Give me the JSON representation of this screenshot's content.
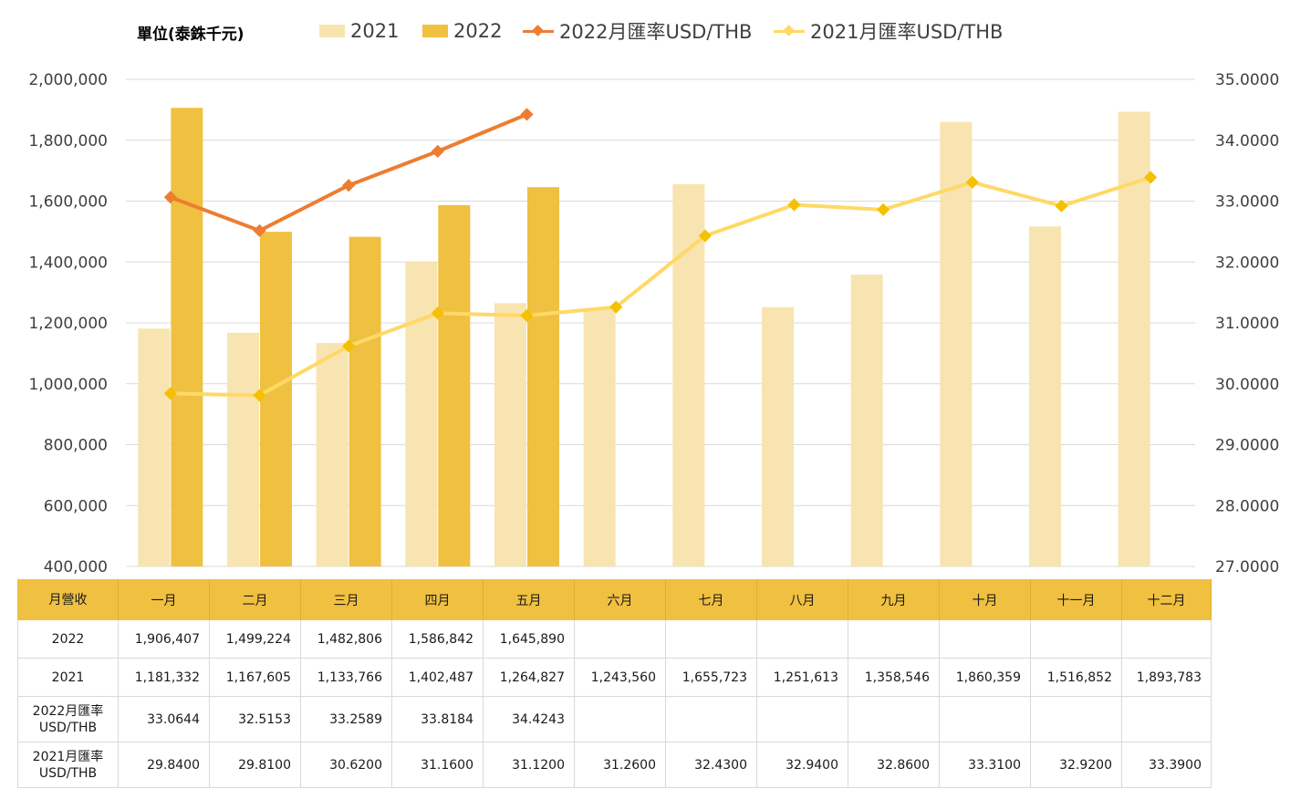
{
  "unit_label": "單位(泰銖千元)",
  "chart_data": {
    "type": "bar",
    "categories": [
      "一月",
      "二月",
      "三月",
      "四月",
      "五月",
      "六月",
      "七月",
      "八月",
      "九月",
      "十月",
      "十一月",
      "十二月"
    ],
    "series": [
      {
        "name": "2021",
        "type": "bar",
        "axis": "left",
        "color": "#f8e4b0",
        "values": [
          1181332,
          1167605,
          1133766,
          1402487,
          1264827,
          1243560,
          1655723,
          1251613,
          1358546,
          1860359,
          1516852,
          1893783
        ]
      },
      {
        "name": "2022",
        "type": "bar",
        "axis": "left",
        "color": "#f0c040",
        "values": [
          1906407,
          1499224,
          1482806,
          1586842,
          1645890,
          null,
          null,
          null,
          null,
          null,
          null,
          null
        ]
      },
      {
        "name": "2022月匯率USD/THB",
        "type": "line",
        "axis": "right",
        "color": "#ed7d31",
        "values": [
          33.0644,
          32.5153,
          33.2589,
          33.8184,
          34.4243,
          null,
          null,
          null,
          null,
          null,
          null,
          null
        ]
      },
      {
        "name": "2021月匯率USD/THB",
        "type": "line",
        "axis": "right",
        "color": "#ffd966",
        "values": [
          29.84,
          29.81,
          30.62,
          31.16,
          31.12,
          31.26,
          32.43,
          32.94,
          32.86,
          33.31,
          32.92,
          33.39
        ]
      }
    ],
    "y_left": {
      "min": 400000,
      "max": 2000000,
      "ticks": [
        "2,000,000",
        "1,800,000",
        "1,600,000",
        "1,400,000",
        "1,200,000",
        "1,000,000",
        "800,000",
        "600,000",
        "400,000"
      ]
    },
    "y_right": {
      "min": 27,
      "max": 35,
      "ticks": [
        "35.0000",
        "34.0000",
        "33.0000",
        "32.0000",
        "31.0000",
        "30.0000",
        "29.0000",
        "28.0000",
        "27.0000"
      ]
    },
    "grid": true,
    "legend_position": "top"
  },
  "table": {
    "header": [
      "月營收",
      "一月",
      "二月",
      "三月",
      "四月",
      "五月",
      "六月",
      "七月",
      "八月",
      "九月",
      "十月",
      "十一月",
      "十二月"
    ],
    "rows": [
      {
        "label": "2022",
        "cells": [
          "1,906,407",
          "1,499,224",
          "1,482,806",
          "1,586,842",
          "1,645,890",
          "",
          "",
          "",
          "",
          "",
          "",
          ""
        ]
      },
      {
        "label": "2021",
        "cells": [
          "1,181,332",
          "1,167,605",
          "1,133,766",
          "1,402,487",
          "1,264,827",
          "1,243,560",
          "1,655,723",
          "1,251,613",
          "1,358,546",
          "1,860,359",
          "1,516,852",
          "1,893,783"
        ]
      },
      {
        "label": "2022月匯率\nUSD/THB",
        "cells": [
          "33.0644",
          "32.5153",
          "33.2589",
          "33.8184",
          "34.4243",
          "",
          "",
          "",
          "",
          "",
          "",
          ""
        ]
      },
      {
        "label": "2021月匯率\nUSD/THB",
        "cells": [
          "29.8400",
          "29.8100",
          "30.6200",
          "31.1600",
          "31.1200",
          "31.2600",
          "32.4300",
          "32.9400",
          "32.8600",
          "33.3100",
          "32.9200",
          "33.3900"
        ]
      }
    ]
  }
}
